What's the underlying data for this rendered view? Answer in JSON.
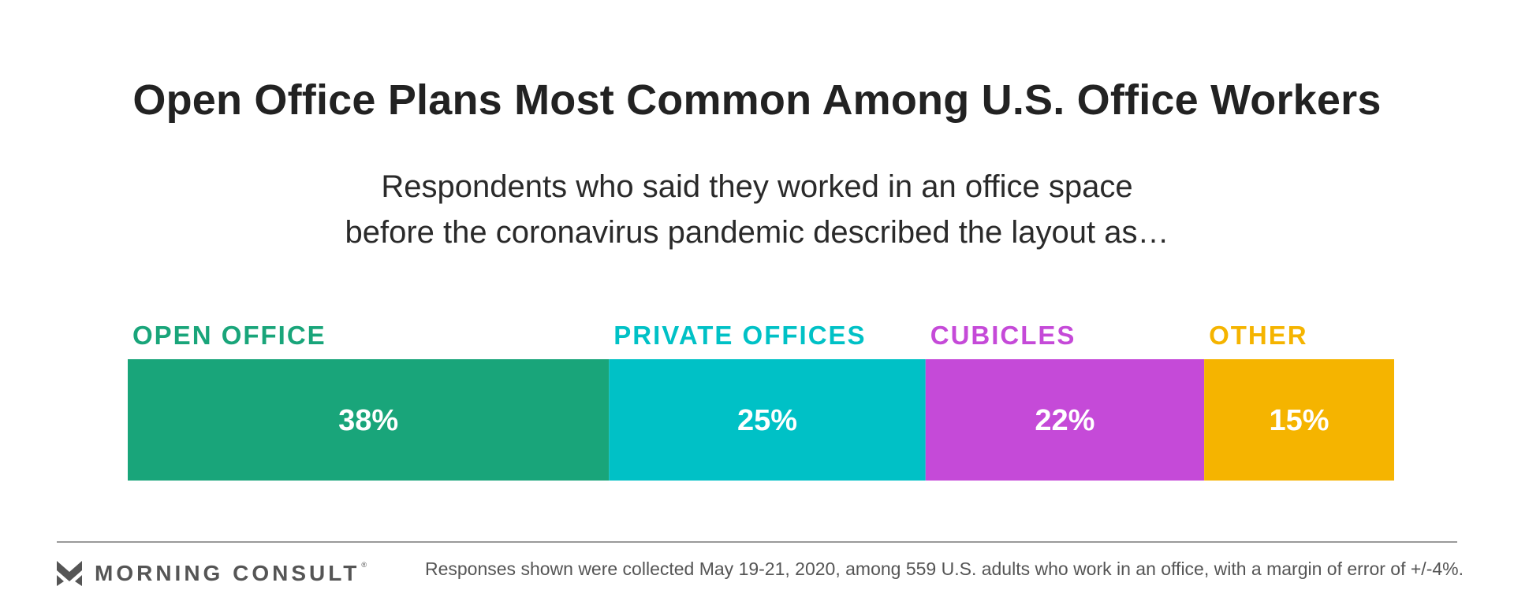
{
  "header": {
    "title": "Open Office Plans Most Common Among U.S. Office Workers",
    "subtitle_line1": "Respondents who said they worked in an office space",
    "subtitle_line2": "before the coronavirus pandemic described the layout as…"
  },
  "footer": {
    "brand": "MORNING CONSULT",
    "registered_mark": "®",
    "note": "Responses shown were collected May 19-21, 2020, among 559 U.S. adults who work in an office, with a margin of error of +/-4%."
  },
  "colors": {
    "open_office": "#19A57A",
    "private_offices": "#00C1C6",
    "cubicles": "#C54AD8",
    "other": "#F5B400",
    "logo": "#555555"
  },
  "chart_data": {
    "type": "bar",
    "orientation": "horizontal-stacked",
    "title": "Open Office Plans Most Common Among U.S. Office Workers",
    "categories": [
      "OPEN OFFICE",
      "PRIVATE OFFICES",
      "CUBICLES",
      "OTHER"
    ],
    "values": [
      38,
      25,
      22,
      15
    ],
    "value_labels": [
      "38%",
      "25%",
      "22%",
      "15%"
    ],
    "unit": "%",
    "total": 100,
    "series_colors": [
      "#19A57A",
      "#00C1C6",
      "#C54AD8",
      "#F5B400"
    ],
    "legend": "labels above each segment"
  }
}
